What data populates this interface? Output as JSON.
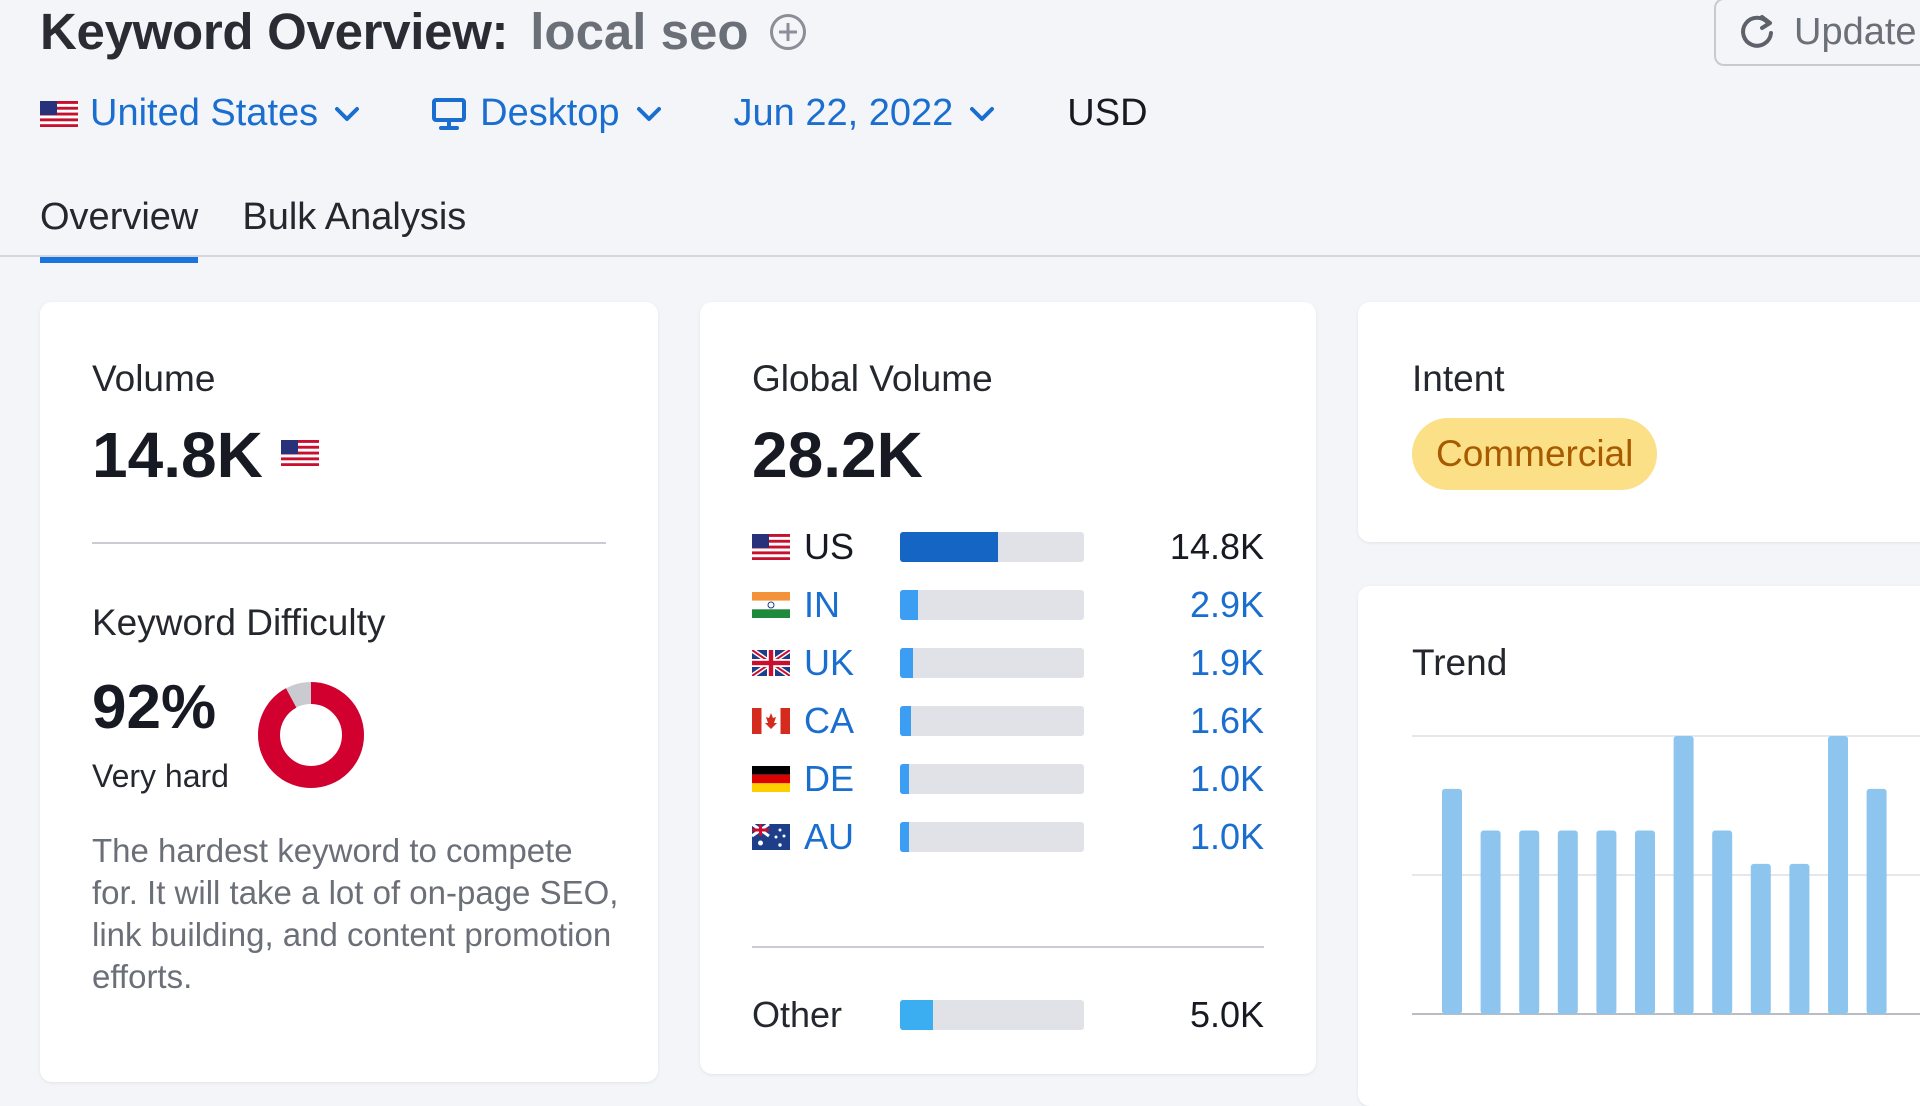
{
  "header": {
    "title": "Keyword Overview:",
    "keyword": "local seo",
    "update_label": "Update",
    "filters": {
      "country": "United States",
      "device": "Desktop",
      "date": "Jun 22, 2022",
      "currency": "USD"
    },
    "tabs": [
      {
        "label": "Overview",
        "active": true
      },
      {
        "label": "Bulk Analysis",
        "active": false
      }
    ]
  },
  "volume": {
    "label": "Volume",
    "value": "14.8K"
  },
  "keyword_difficulty": {
    "label": "Keyword Difficulty",
    "value": "92%",
    "percent": 92,
    "level": "Very hard",
    "description": "The hardest keyword to compete for. It will take a lot of on-page SEO, link building, and content promotion efforts.",
    "color": "#d1002f"
  },
  "global_volume": {
    "label": "Global Volume",
    "value": "28.2K",
    "countries": [
      {
        "code": "US",
        "value": "14.8K",
        "share": 0.53,
        "flag": "us-flag-icon"
      },
      {
        "code": "IN",
        "value": "2.9K",
        "share": 0.1,
        "flag": "india-flag-icon"
      },
      {
        "code": "UK",
        "value": "1.9K",
        "share": 0.07,
        "flag": "uk-flag-icon"
      },
      {
        "code": "CA",
        "value": "1.6K",
        "share": 0.06,
        "flag": "canada-flag-icon"
      },
      {
        "code": "DE",
        "value": "1.0K",
        "share": 0.04,
        "flag": "germany-flag-icon"
      },
      {
        "code": "AU",
        "value": "1.0K",
        "share": 0.04,
        "flag": "australia-flag-icon"
      }
    ],
    "other": {
      "label": "Other",
      "value": "5.0K",
      "share": 0.18
    }
  },
  "intent": {
    "label": "Intent",
    "value": "Commercial"
  },
  "trend": {
    "label": "Trend"
  },
  "chart_data": {
    "type": "bar",
    "title": "Trend",
    "values": [
      81,
      66,
      66,
      66,
      66,
      66,
      100,
      66,
      54,
      54,
      100,
      81
    ],
    "ylim": [
      0,
      100
    ],
    "grid": true,
    "color": "#8ec5ef"
  }
}
